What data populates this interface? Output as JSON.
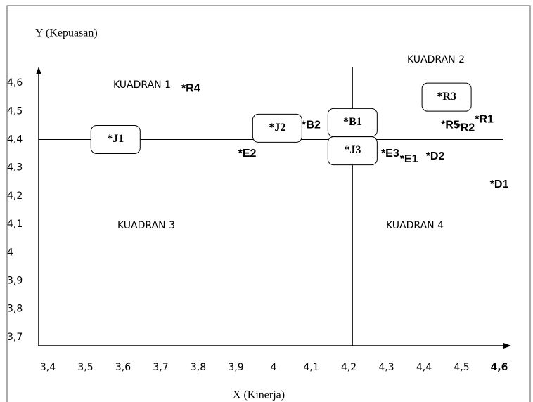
{
  "chart_data": {
    "type": "scatter",
    "y_label": "Y (Kepuasan)",
    "x_label": "X (Kinerja)",
    "xlim": [
      3.4,
      4.6
    ],
    "ylim": [
      3.67,
      4.64
    ],
    "xticks": [
      {
        "value": 3.4,
        "label": "3,4"
      },
      {
        "value": 3.5,
        "label": "3,5"
      },
      {
        "value": 3.6,
        "label": "3,6"
      },
      {
        "value": 3.7,
        "label": "3,7"
      },
      {
        "value": 3.8,
        "label": "3,8"
      },
      {
        "value": 3.9,
        "label": "3,9"
      },
      4,
      {
        "value": 4.1,
        "label": "4,1"
      },
      {
        "value": 4.2,
        "label": "4,2"
      },
      {
        "value": 4.3,
        "label": "4,3"
      },
      {
        "value": 4.4,
        "label": "4,4"
      },
      {
        "value": 4.5,
        "label": "4,5"
      },
      {
        "value": 4.6,
        "label": "4,6"
      }
    ],
    "yticks": [
      {
        "value": 3.7,
        "label": "3,7"
      },
      {
        "value": 3.8,
        "label": "3,8"
      },
      {
        "value": 3.9,
        "label": "3,9"
      },
      4,
      {
        "value": 4.1,
        "label": "4,1"
      },
      {
        "value": 4.2,
        "label": "4,2"
      },
      {
        "value": 4.3,
        "label": "4,3"
      },
      {
        "value": 4.4,
        "label": "4,4"
      },
      {
        "value": 4.5,
        "label": "4,5"
      },
      {
        "value": 4.6,
        "label": "4,6"
      }
    ],
    "dividers": {
      "x": 4.21,
      "y": 4.4
    },
    "annotations": [
      "KUADRAN 1",
      "KUADRAN 2",
      "KUADRAN 3",
      "KUADRAN 4"
    ],
    "points": [
      {
        "label": "*R4",
        "x": 3.78,
        "y": 4.58,
        "boxed": false
      },
      {
        "label": "*J1",
        "x": 3.58,
        "y": 4.4,
        "boxed": true
      },
      {
        "label": "*J2",
        "x": 4.01,
        "y": 4.44,
        "boxed": true
      },
      {
        "label": "*E2",
        "x": 3.93,
        "y": 4.35,
        "boxed": false
      },
      {
        "label": "*B2",
        "x": 4.1,
        "y": 4.45,
        "boxed": false
      },
      {
        "label": "*B1",
        "x": 4.21,
        "y": 4.46,
        "boxed": true
      },
      {
        "label": "*J3",
        "x": 4.21,
        "y": 4.36,
        "boxed": true
      },
      {
        "label": "*E3",
        "x": 4.31,
        "y": 4.35,
        "boxed": false
      },
      {
        "label": "*E1",
        "x": 4.36,
        "y": 4.33,
        "boxed": false
      },
      {
        "label": "*D2",
        "x": 4.43,
        "y": 4.34,
        "boxed": false
      },
      {
        "label": "*R3",
        "x": 4.46,
        "y": 4.55,
        "boxed": true
      },
      {
        "label": "*R5",
        "x": 4.47,
        "y": 4.45,
        "boxed": false
      },
      {
        "label": "*R2",
        "x": 4.51,
        "y": 4.44,
        "boxed": false
      },
      {
        "label": "*R1",
        "x": 4.56,
        "y": 4.47,
        "boxed": false
      },
      {
        "label": "*D1",
        "x": 4.6,
        "y": 4.24,
        "boxed": false
      }
    ]
  }
}
